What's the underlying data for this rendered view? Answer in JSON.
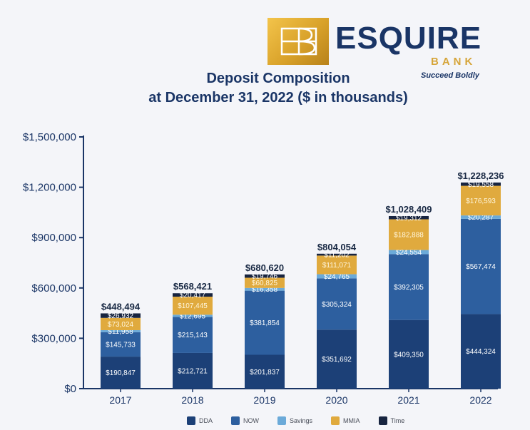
{
  "logo": {
    "mark_text": "EB",
    "wordmark": "ESQUIRE",
    "subword": "BANK",
    "tagline": "Succeed Boldly"
  },
  "title": {
    "line1": "Deposit Composition",
    "line2": "at December 31, 2022 ($ in thousands)"
  },
  "colors": {
    "DDA": "#1c4077",
    "NOW": "#2d5f9f",
    "Savings": "#6baad9",
    "MMIA": "#e0aa3e",
    "Time": "#172440",
    "axis": "#1a3566"
  },
  "chart_data": {
    "type": "bar",
    "stacked": true,
    "title": "Deposit Composition at December 31, 2022 ($ in thousands)",
    "xlabel": "",
    "ylabel": "",
    "ylim": [
      0,
      1500000
    ],
    "yticks": [
      0,
      300000,
      600000,
      900000,
      1200000,
      1500000
    ],
    "ytick_labels": [
      "$0",
      "$300,000",
      "$600,000",
      "$900,000",
      "$1,200,000",
      "$1,500,000"
    ],
    "categories": [
      "2017",
      "2018",
      "2019",
      "2020",
      "2021",
      "2022"
    ],
    "series": [
      {
        "name": "DDA",
        "values": [
          190847,
          212721,
          201837,
          351692,
          409350,
          444324
        ],
        "labels": [
          "$190,847",
          "$212,721",
          "$201,837",
          "$351,692",
          "$409,350",
          "$444,324"
        ]
      },
      {
        "name": "NOW",
        "values": [
          145733,
          215143,
          381854,
          305324,
          392305,
          567474
        ],
        "labels": [
          "$145,733",
          "$215,143",
          "$381,854",
          "$305,324",
          "$392,305",
          "$567,474"
        ]
      },
      {
        "name": "Savings",
        "values": [
          11958,
          12695,
          16358,
          24765,
          24554,
          20287
        ],
        "labels": [
          "$11,958",
          "$12,695",
          "$16,358",
          "$24,765",
          "$24,554",
          "$20,287"
        ]
      },
      {
        "name": "MMIA",
        "values": [
          73024,
          107445,
          60825,
          111071,
          182888,
          176593
        ],
        "labels": [
          "$73,024",
          "$107,445",
          "$60,825",
          "$111,071",
          "$182,888",
          "$176,593"
        ]
      },
      {
        "name": "Time",
        "values": [
          26932,
          20417,
          19746,
          11202,
          19312,
          19558
        ],
        "labels": [
          "$26,932",
          "$20,417",
          "$19,746",
          "$11,202",
          "$19,312",
          "$19,558"
        ]
      }
    ],
    "totals": [
      448494,
      568421,
      680620,
      804054,
      1028409,
      1228236
    ],
    "total_labels": [
      "$448,494",
      "$568,421",
      "$680,620",
      "$804,054",
      "$1,028,409",
      "$1,228,236"
    ],
    "legend": [
      "DDA",
      "NOW",
      "Savings",
      "MMIA",
      "Time"
    ],
    "legend_position": "bottom",
    "grid": false
  }
}
